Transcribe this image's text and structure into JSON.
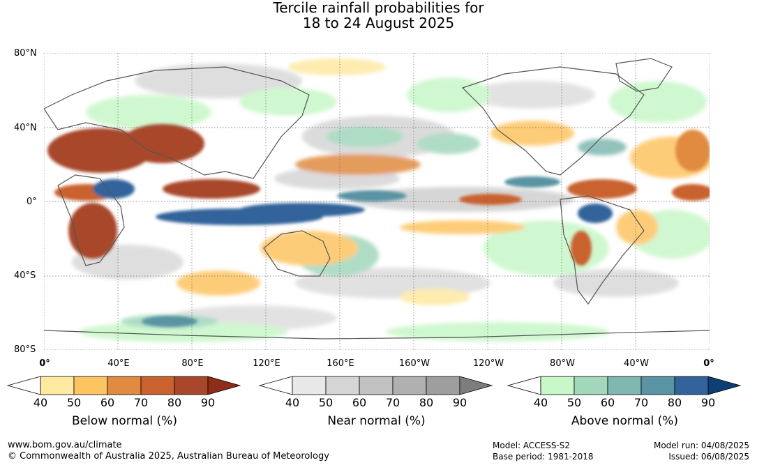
{
  "title": {
    "line1": "Tercile rainfall probabilities for",
    "line2": "18 to 24 August 2025"
  },
  "axes": {
    "lat_labels": [
      "80°N",
      "40°N",
      "0°",
      "40°S",
      "80°S"
    ],
    "lon_labels": [
      "0°",
      "40°E",
      "80°E",
      "120°E",
      "160°E",
      "160°W",
      "120°W",
      "80°W",
      "40°W",
      "0°"
    ]
  },
  "legends": [
    {
      "title": "Below normal (%)",
      "ticks": [
        "40",
        "50",
        "60",
        "70",
        "80",
        "90"
      ],
      "colors": [
        "#ffffff",
        "#fde9a0",
        "#fdc462",
        "#e08b40",
        "#c9622e",
        "#a8472a",
        "#8e2d18"
      ]
    },
    {
      "title": "Near normal (%)",
      "ticks": [
        "40",
        "50",
        "60",
        "70",
        "80",
        "90"
      ],
      "colors": [
        "#ffffff",
        "#e8e8e8",
        "#d5d5d5",
        "#c2c2c2",
        "#b0b0b0",
        "#9e9e9e",
        "#7d7d7d"
      ]
    },
    {
      "title": "Above normal (%)",
      "ticks": [
        "40",
        "50",
        "60",
        "70",
        "80",
        "90"
      ],
      "colors": [
        "#ffffff",
        "#c8f7c8",
        "#a2d7bc",
        "#7fb8b0",
        "#5a93a3",
        "#32649b",
        "#0e3f74"
      ]
    }
  ],
  "footer": {
    "url": "www.bom.gov.au/climate",
    "copyright": "© Commonwealth of Australia 2025, Australian Bureau of Meteorology",
    "model": "Model: ACCESS-S2",
    "base_period": "Base period: 1981-2018",
    "model_run": "Model run: 04/08/2025",
    "issued": "Issued: 06/08/2025"
  }
}
